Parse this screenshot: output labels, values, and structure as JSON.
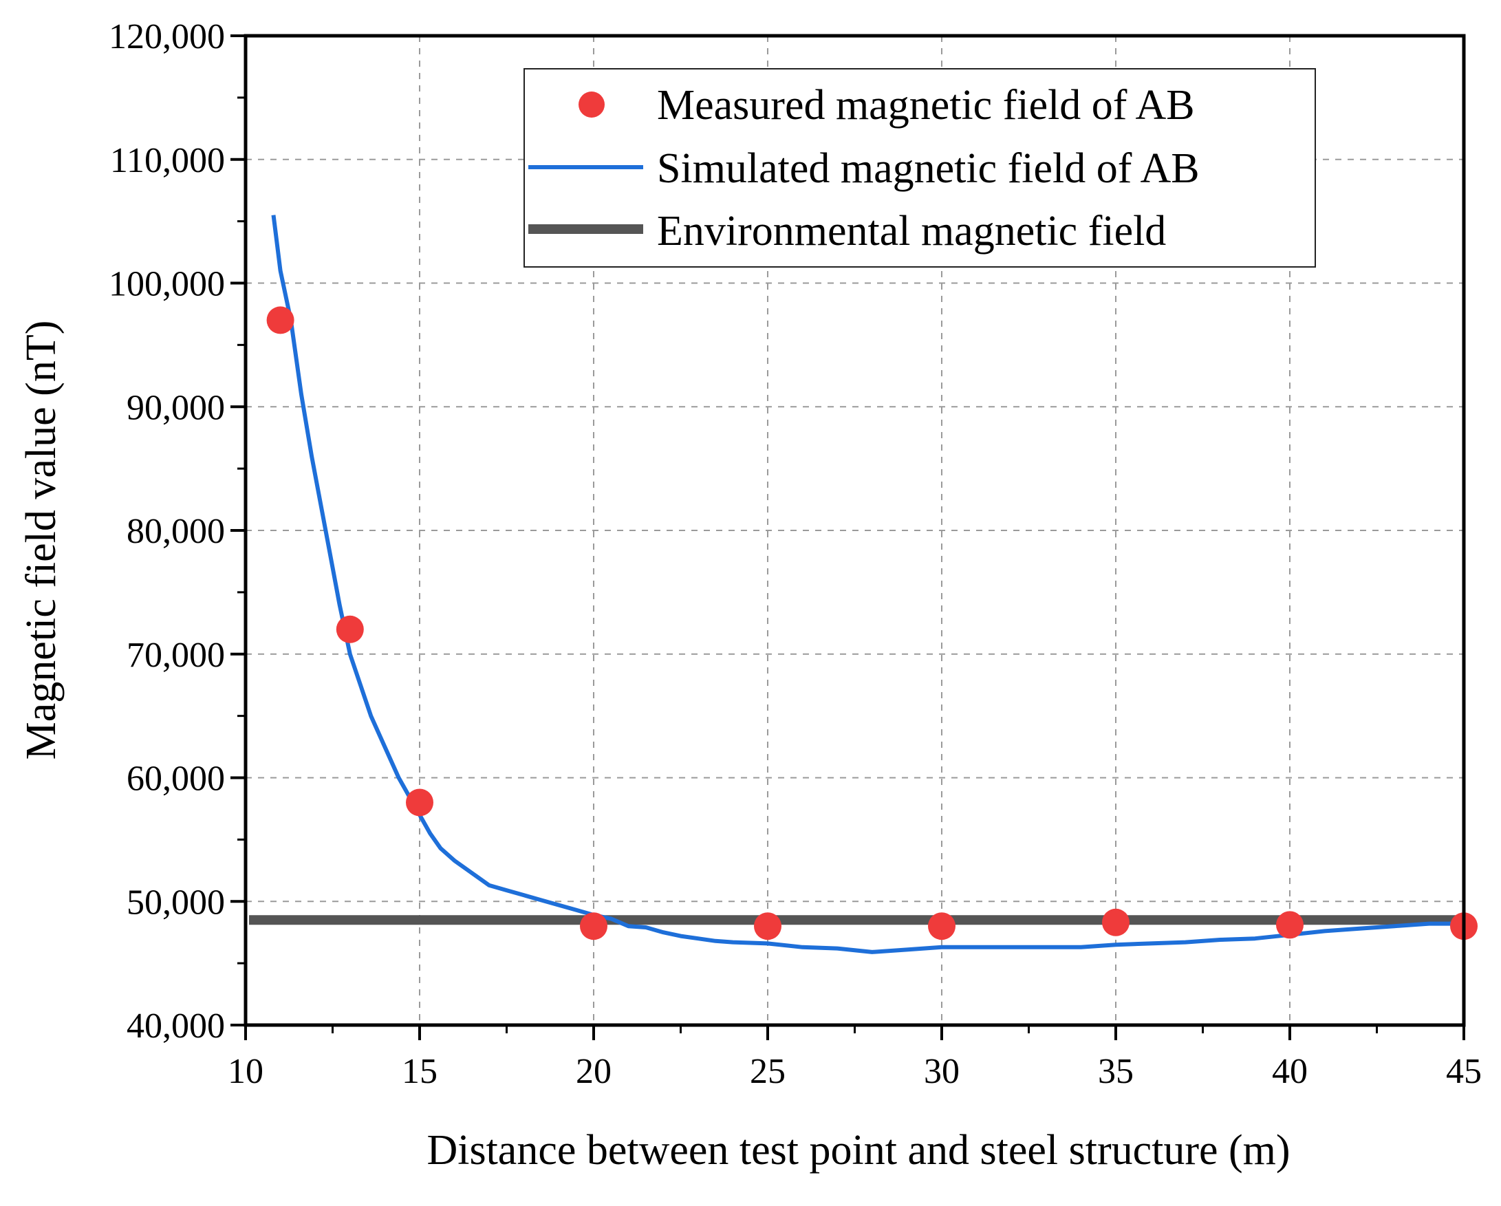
{
  "chart_data": {
    "type": "line",
    "title": "",
    "xlabel": "Distance between test point and steel structure (m)",
    "ylabel": "Magnetic field value (nT)",
    "xlim": [
      10,
      45
    ],
    "ylim": [
      40000,
      120000
    ],
    "grid": true,
    "legend_position": "top-right",
    "x_ticks": [
      10,
      15,
      20,
      25,
      30,
      35,
      40,
      45
    ],
    "x_tick_labels": [
      "10",
      "15",
      "20",
      "25",
      "30",
      "35",
      "40",
      "45"
    ],
    "y_ticks": [
      40000,
      50000,
      60000,
      70000,
      80000,
      90000,
      100000,
      110000,
      120000
    ],
    "y_tick_labels": [
      "40,000",
      "50,000",
      "60,000",
      "70,000",
      "80,000",
      "90,000",
      "100,000",
      "110,000",
      "120,000"
    ],
    "series": [
      {
        "name": "Measured magnetic field of AB",
        "kind": "scatter",
        "color": "#ef3b3b",
        "x": [
          11,
          13,
          15,
          20,
          25,
          30,
          35,
          40,
          45
        ],
        "y": [
          97000,
          72000,
          58000,
          48000,
          48000,
          48000,
          48300,
          48100,
          48000
        ]
      },
      {
        "name": "Simulated magnetic field of AB",
        "kind": "line",
        "color": "#1e6fd9",
        "x": [
          10.8,
          11.0,
          11.3,
          11.6,
          11.9,
          12.2,
          12.5,
          12.7,
          13.0,
          13.3,
          13.6,
          14.0,
          14.4,
          14.7,
          15.0,
          15.3,
          15.6,
          16.0,
          16.5,
          17.0,
          17.5,
          18.0,
          18.5,
          19.0,
          19.5,
          20.0,
          20.5,
          21.0,
          21.5,
          22.0,
          22.5,
          23.0,
          23.5,
          24.0,
          25.0,
          26.0,
          27.0,
          28.0,
          29.0,
          30.0,
          31.0,
          32.0,
          33.0,
          34.0,
          35.0,
          36.0,
          37.0,
          38.0,
          39.0,
          40.0,
          41.0,
          42.0,
          43.0,
          44.0,
          45.0
        ],
        "y": [
          105500,
          101000,
          97000,
          91000,
          86000,
          81500,
          77000,
          74000,
          70000,
          67500,
          65000,
          62500,
          60000,
          58500,
          57000,
          55500,
          54300,
          53300,
          52300,
          51300,
          50900,
          50500,
          50100,
          49700,
          49300,
          48900,
          48600,
          48000,
          47900,
          47500,
          47200,
          47000,
          46800,
          46700,
          46600,
          46300,
          46200,
          45900,
          46100,
          46300,
          46300,
          46300,
          46300,
          46300,
          46500,
          46600,
          46700,
          46900,
          47000,
          47300,
          47600,
          47800,
          48000,
          48200,
          48200
        ]
      },
      {
        "name": "Environmental magnetic field",
        "kind": "hline",
        "color": "#555555",
        "x": [
          10,
          45
        ],
        "y": [
          48500,
          48500
        ]
      }
    ]
  }
}
